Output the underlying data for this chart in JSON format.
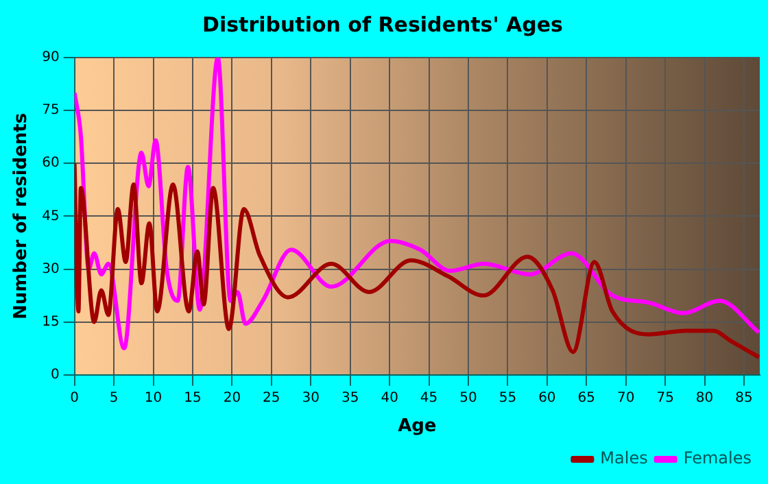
{
  "chart_data": {
    "type": "line",
    "title": "Distribution of Residents' Ages",
    "xlabel": "Age",
    "ylabel": "Number of residents",
    "series": [
      {
        "name": "Males",
        "color": "#a00000",
        "x": [
          0,
          0.5,
          0.8,
          2.5,
          3.4,
          4.3,
          5.5,
          6.5,
          7.5,
          8.5,
          9.5,
          10.5,
          12.5,
          14.5,
          15.6,
          16.4,
          17.6,
          19.6,
          21.5,
          23.5,
          27.1,
          32.6,
          37.4,
          42.7,
          47.4,
          51.9,
          57.5,
          60.7,
          63.3,
          66,
          68.3,
          72.9,
          77.6,
          81.1,
          83.4,
          86.9
        ],
        "values": [
          60,
          18,
          53,
          15,
          24,
          17,
          47,
          32,
          54,
          26,
          43,
          18,
          54,
          18,
          35,
          20,
          53,
          13,
          47,
          34,
          22,
          31.5,
          23.5,
          32.5,
          28,
          22.5,
          33.5,
          24,
          6.5,
          32,
          18,
          11.5,
          12.5,
          12.5,
          9.5,
          5
        ]
      },
      {
        "name": "Females",
        "color": "#ff00ff",
        "x": [
          0,
          0.8,
          1.8,
          2.5,
          3.4,
          4.3,
          6.3,
          8.5,
          9.4,
          10.3,
          11.7,
          13.1,
          14.4,
          15.9,
          18.2,
          19.8,
          20.7,
          21.7,
          23.9,
          27.5,
          32.6,
          40.1,
          43.9,
          47.7,
          52,
          57.8,
          63.1,
          68.3,
          72.9,
          77.3,
          81.9,
          86.9
        ],
        "values": [
          80,
          68,
          30,
          34.5,
          28.5,
          31.5,
          7.5,
          63,
          53.5,
          66.5,
          30,
          21,
          59,
          18.5,
          90,
          21,
          23.5,
          14.5,
          21,
          35.5,
          25,
          38,
          35.5,
          29.5,
          31.5,
          28.5,
          34.5,
          22.5,
          20.5,
          17.5,
          21,
          12
        ]
      }
    ],
    "xlim": [
      0,
      87
    ],
    "ylim": [
      0,
      90
    ],
    "xticks": [
      0,
      5,
      10,
      15,
      20,
      25,
      30,
      35,
      40,
      45,
      50,
      55,
      60,
      65,
      70,
      75,
      80,
      85
    ],
    "yticks": [
      0,
      15,
      30,
      45,
      60,
      75,
      90
    ],
    "grid": true,
    "legend": "bottom right"
  }
}
